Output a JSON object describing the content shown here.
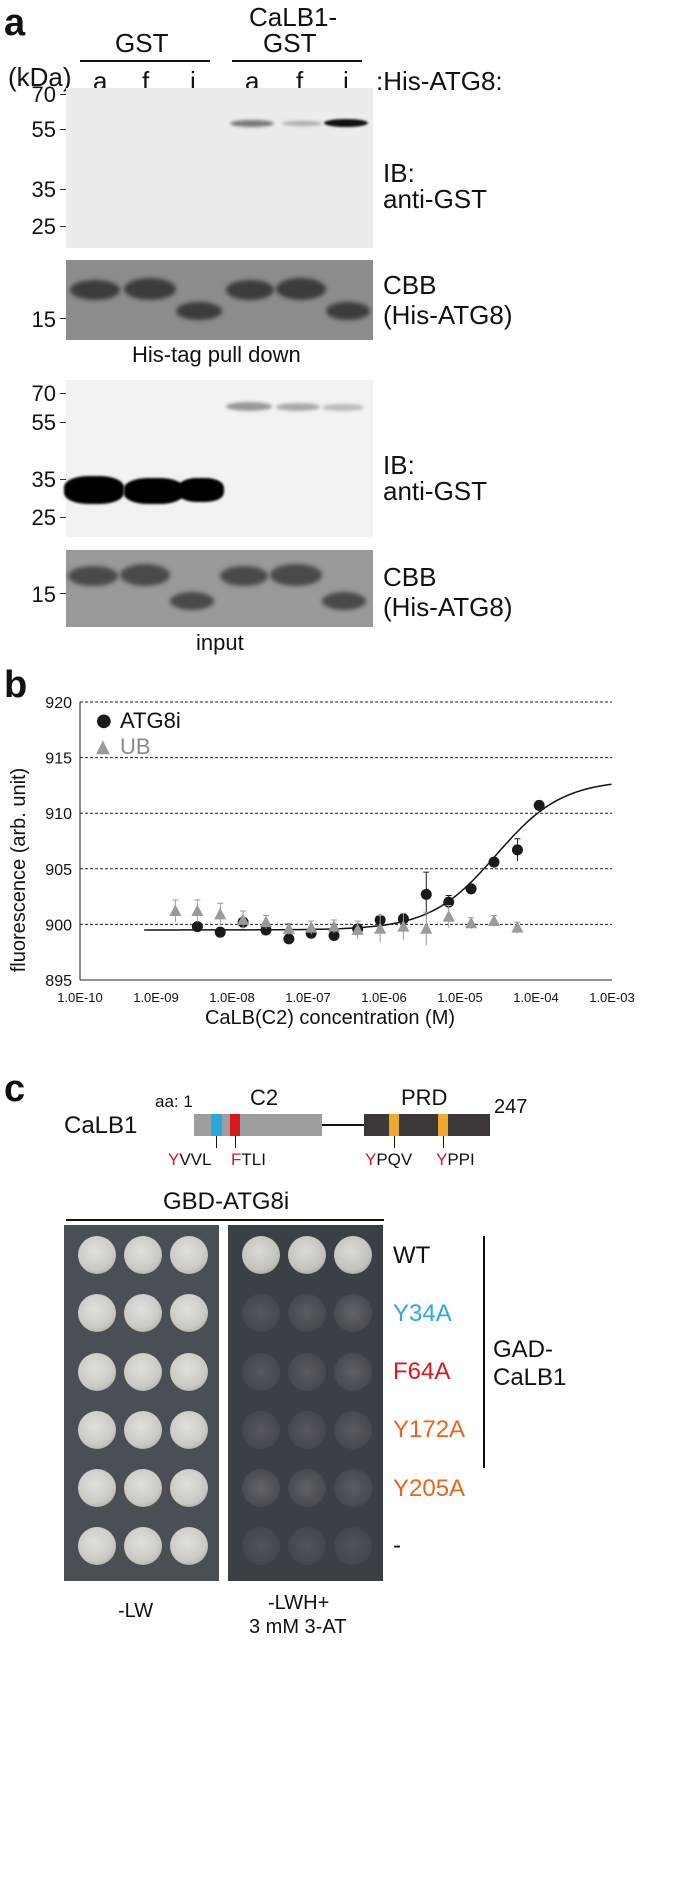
{
  "panel_a": {
    "letter": "a",
    "groups": {
      "gst": "GST",
      "calb1_line1": "CaLB1-",
      "calb1_line2": "GST"
    },
    "kda": "(kDa)",
    "lanes": [
      "a",
      "f",
      "i",
      "a",
      "f",
      "i"
    ],
    "his_atg8": ":His-ATG8:",
    "blot1": {
      "ticks": [
        "70",
        "55",
        "35",
        "25"
      ],
      "label_l1": "IB:",
      "label_l2": "anti-GST"
    },
    "cbb1": {
      "tick": "15",
      "label_l1": "CBB",
      "label_l2": "(His-ATG8)"
    },
    "caption1": "His-tag pull down",
    "blot2": {
      "ticks": [
        "70",
        "55",
        "35",
        "25"
      ],
      "label_l1": "IB:",
      "label_l2": "anti-GST"
    },
    "cbb2": {
      "tick": "15",
      "label_l1": "CBB",
      "label_l2": "(His-ATG8)"
    },
    "caption2": "input"
  },
  "panel_b": {
    "letter": "b",
    "legend": [
      {
        "symbol": "●",
        "label": "ATG8i",
        "color": "#1a1a1a"
      },
      {
        "symbol": "▲",
        "label": "UB",
        "color": "#9a9a9a"
      }
    ]
  },
  "chart_data": {
    "type": "scatter",
    "title": "",
    "xlabel": "CaLB(C2) concentration (M)",
    "ylabel": "fluorescence (arb. unit)",
    "xscale": "log",
    "xlim": [
      1e-10,
      0.001
    ],
    "ylim": [
      895,
      920
    ],
    "x_tick_labels": [
      "1.0E-10",
      "1.0E-09",
      "1.0E-08",
      "1.0E-07",
      "1.0E-06",
      "1.0E-05",
      "1.0E-04",
      "1.0E-03"
    ],
    "y_tick_labels": [
      "895",
      "900",
      "905",
      "910",
      "915",
      "920"
    ],
    "grid": "horizontal dashed at 900, 905, 910, 915, 920",
    "legend_position": "top-left",
    "series": [
      {
        "name": "ATG8i",
        "marker": "circle",
        "color": "#1a1a1a",
        "x": [
          3.5e-09,
          7e-09,
          1.4e-08,
          2.8e-08,
          5.6e-08,
          1.1e-07,
          2.2e-07,
          4.5e-07,
          8.9e-07,
          1.8e-06,
          3.6e-06,
          7.1e-06,
          1.4e-05,
          2.8e-05,
          5.7e-05,
          0.00011
        ],
        "y": [
          899.8,
          899.3,
          900.2,
          899.5,
          898.7,
          899.2,
          899.0,
          899.6,
          900.4,
          900.5,
          902.7,
          902.0,
          903.2,
          905.6,
          906.7,
          910.7
        ],
        "err": [
          0.3,
          0.3,
          0.3,
          0.3,
          0.3,
          0.3,
          0.3,
          0.3,
          0.3,
          0.4,
          2.0,
          0.6,
          0.4,
          0.4,
          1.0,
          0.4
        ],
        "fit": {
          "bottom": 899.5,
          "top": 913.0,
          "kd": 3e-05
        }
      },
      {
        "name": "UB",
        "marker": "triangle",
        "color": "#9a9a9a",
        "x": [
          1.8e-09,
          3.5e-09,
          7e-09,
          1.4e-08,
          2.8e-08,
          5.6e-08,
          1.1e-07,
          2.2e-07,
          4.5e-07,
          8.9e-07,
          1.8e-06,
          3.6e-06,
          7.1e-06,
          1.4e-05,
          2.8e-05,
          5.7e-05
        ],
        "y": [
          901.2,
          901.2,
          900.9,
          900.4,
          900.2,
          899.6,
          899.7,
          899.8,
          899.5,
          899.6,
          899.8,
          899.6,
          900.7,
          900.1,
          900.3,
          899.7
        ],
        "err": [
          1.0,
          1.0,
          1.0,
          0.8,
          0.6,
          0.5,
          0.6,
          0.6,
          0.8,
          1.2,
          1.2,
          1.5,
          1.0,
          0.5,
          0.5,
          0.5
        ]
      }
    ]
  },
  "panel_c": {
    "letter": "c",
    "protein": "CaLB1",
    "aa_label": "aa: 1",
    "end": "247",
    "c2": "C2",
    "prd": "PRD",
    "motifs": [
      {
        "red": "Y",
        "rest": "VVL"
      },
      {
        "red": "F",
        "rest": "TLI"
      },
      {
        "red": "Y",
        "rest": "PQV"
      },
      {
        "red": "Y",
        "rest": "PPI"
      }
    ],
    "gbd": "GBD-ATG8i",
    "rows": [
      {
        "label": "WT",
        "color": "#111111",
        "growth": [
          1,
          1,
          1
        ]
      },
      {
        "label": "Y34A",
        "color": "#2aa8dc",
        "growth": [
          0.15,
          0.2,
          0.3
        ]
      },
      {
        "label": "F64A",
        "color": "#d7191c",
        "growth": [
          0.15,
          0.2,
          0.25
        ]
      },
      {
        "label": "Y172A",
        "color": "#e8661c",
        "growth": [
          0.15,
          0.15,
          0.2
        ]
      },
      {
        "label": "Y205A",
        "color": "#e8661c",
        "growth": [
          0.3,
          0.25,
          0.2
        ]
      },
      {
        "label": "-",
        "color": "#111111",
        "growth": [
          0.1,
          0.1,
          0.1
        ]
      }
    ],
    "gad_l1": "GAD-",
    "gad_l2": "CaLB1",
    "plate1": "-LW",
    "plate2_l1": "-LWH+",
    "plate2_l2": "3 mM 3-AT"
  }
}
